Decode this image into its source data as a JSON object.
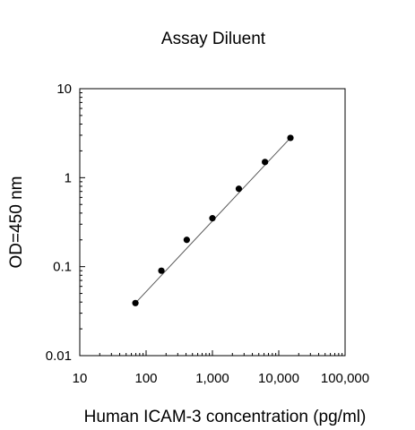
{
  "chart_data": {
    "type": "scatter",
    "title": "Assay Diluent",
    "xlabel": "Human ICAM-3 concentration (pg/ml)",
    "ylabel": "OD=450 nm",
    "x_scale": "log",
    "y_scale": "log",
    "xlim": [
      10,
      100000
    ],
    "ylim": [
      0.01,
      10
    ],
    "x_ticks": [
      10,
      100,
      1000,
      10000,
      100000
    ],
    "x_tick_labels": [
      "10",
      "100",
      "1,000",
      "10,000",
      "100,000"
    ],
    "y_ticks": [
      0.01,
      0.1,
      1,
      10
    ],
    "y_tick_labels": [
      "0.01",
      "0.1",
      "1",
      "10"
    ],
    "grid": false,
    "legend": "none",
    "series": [
      {
        "points": [
          {
            "x": 69,
            "y": 0.039
          },
          {
            "x": 170,
            "y": 0.09
          },
          {
            "x": 410,
            "y": 0.2
          },
          {
            "x": 1000,
            "y": 0.35
          },
          {
            "x": 2500,
            "y": 0.75
          },
          {
            "x": 6200,
            "y": 1.5
          },
          {
            "x": 15000,
            "y": 2.8
          }
        ],
        "fit_line": {
          "x": [
            69,
            15000
          ],
          "y": [
            0.039,
            2.8
          ]
        },
        "marker_color": "#000000",
        "line_color": "#555555"
      }
    ]
  }
}
